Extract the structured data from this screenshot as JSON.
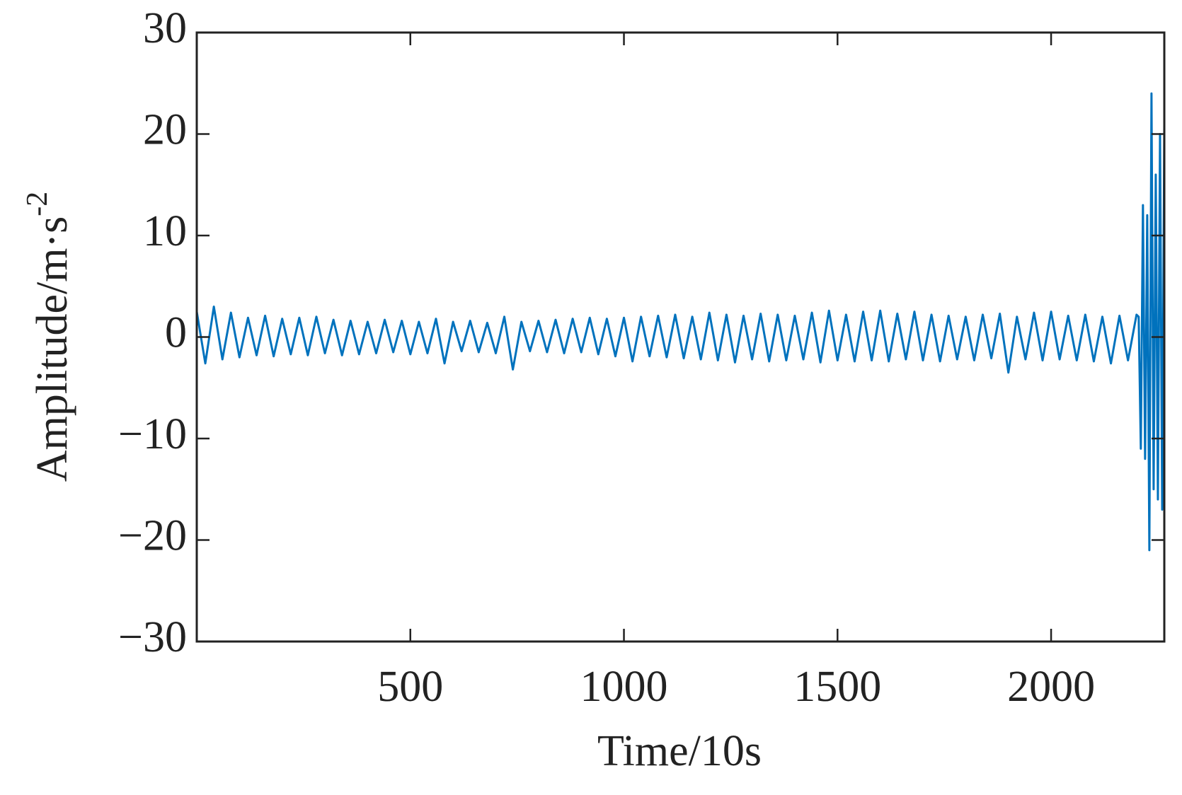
{
  "chart_data": {
    "type": "line",
    "xlabel": "Time/10s",
    "ylabel": {
      "text": "Amplitude/m·s",
      "superscript": "-2"
    },
    "xlim": [
      0,
      2265
    ],
    "ylim": [
      -30,
      30
    ],
    "xticks": [
      500,
      1000,
      1500,
      2000
    ],
    "yticks": [
      {
        "value": -30,
        "label": "−30"
      },
      {
        "value": -20,
        "label": "−20"
      },
      {
        "value": -10,
        "label": "−10"
      },
      0,
      10,
      20,
      30
    ],
    "x": [
      0,
      20,
      40,
      60,
      80,
      100,
      120,
      140,
      160,
      180,
      200,
      220,
      240,
      260,
      280,
      300,
      320,
      340,
      360,
      380,
      400,
      420,
      440,
      460,
      480,
      500,
      520,
      540,
      560,
      580,
      600,
      620,
      640,
      660,
      680,
      700,
      720,
      740,
      760,
      780,
      800,
      820,
      840,
      860,
      880,
      900,
      920,
      940,
      960,
      980,
      1000,
      1020,
      1040,
      1060,
      1080,
      1100,
      1120,
      1140,
      1160,
      1180,
      1200,
      1220,
      1240,
      1260,
      1280,
      1300,
      1320,
      1340,
      1360,
      1380,
      1400,
      1420,
      1440,
      1460,
      1480,
      1500,
      1520,
      1540,
      1560,
      1580,
      1600,
      1620,
      1640,
      1660,
      1680,
      1700,
      1720,
      1740,
      1760,
      1780,
      1800,
      1820,
      1840,
      1860,
      1880,
      1900,
      1920,
      1940,
      1960,
      1980,
      2000,
      2020,
      2040,
      2060,
      2080,
      2100,
      2120,
      2140,
      2160,
      2180,
      2200,
      2205,
      2210,
      2215,
      2220,
      2225,
      2230,
      2235,
      2240,
      2245,
      2250,
      2255,
      2260,
      2265
    ],
    "series": [
      {
        "color": "#0072bd",
        "values": [
          2.5,
          -2.6,
          3.0,
          -2.2,
          2.4,
          -2.0,
          1.9,
          -1.8,
          2.1,
          -1.9,
          1.8,
          -1.7,
          1.9,
          -1.8,
          2.0,
          -1.6,
          1.7,
          -1.8,
          1.6,
          -1.7,
          1.5,
          -1.6,
          1.7,
          -1.5,
          1.6,
          -1.7,
          1.5,
          -1.6,
          1.8,
          -2.6,
          1.5,
          -1.4,
          1.6,
          -1.5,
          1.4,
          -1.6,
          2.0,
          -3.2,
          1.5,
          -1.4,
          1.6,
          -1.5,
          1.7,
          -1.6,
          1.8,
          -1.5,
          1.9,
          -1.7,
          1.8,
          -1.9,
          1.9,
          -2.4,
          2.0,
          -1.9,
          2.1,
          -2.0,
          2.2,
          -2.1,
          2.0,
          -2.2,
          2.4,
          -2.3,
          2.2,
          -2.5,
          2.1,
          -2.2,
          2.3,
          -2.4,
          2.2,
          -2.3,
          2.1,
          -2.2,
          2.4,
          -2.5,
          2.6,
          -2.3,
          2.2,
          -2.4,
          2.5,
          -2.3,
          2.6,
          -2.4,
          2.3,
          -2.2,
          2.5,
          -2.3,
          2.2,
          -2.4,
          2.1,
          -2.2,
          2.0,
          -2.3,
          2.2,
          -2.1,
          2.3,
          -3.5,
          2.0,
          -2.2,
          2.4,
          -2.3,
          2.5,
          -2.2,
          2.1,
          -2.3,
          2.2,
          -2.4,
          2.0,
          -2.6,
          2.1,
          -2.3,
          2.2,
          2,
          -11,
          13,
          -12,
          12,
          -21,
          24,
          -15,
          16,
          -16,
          20,
          -17,
          21
        ]
      }
    ]
  }
}
